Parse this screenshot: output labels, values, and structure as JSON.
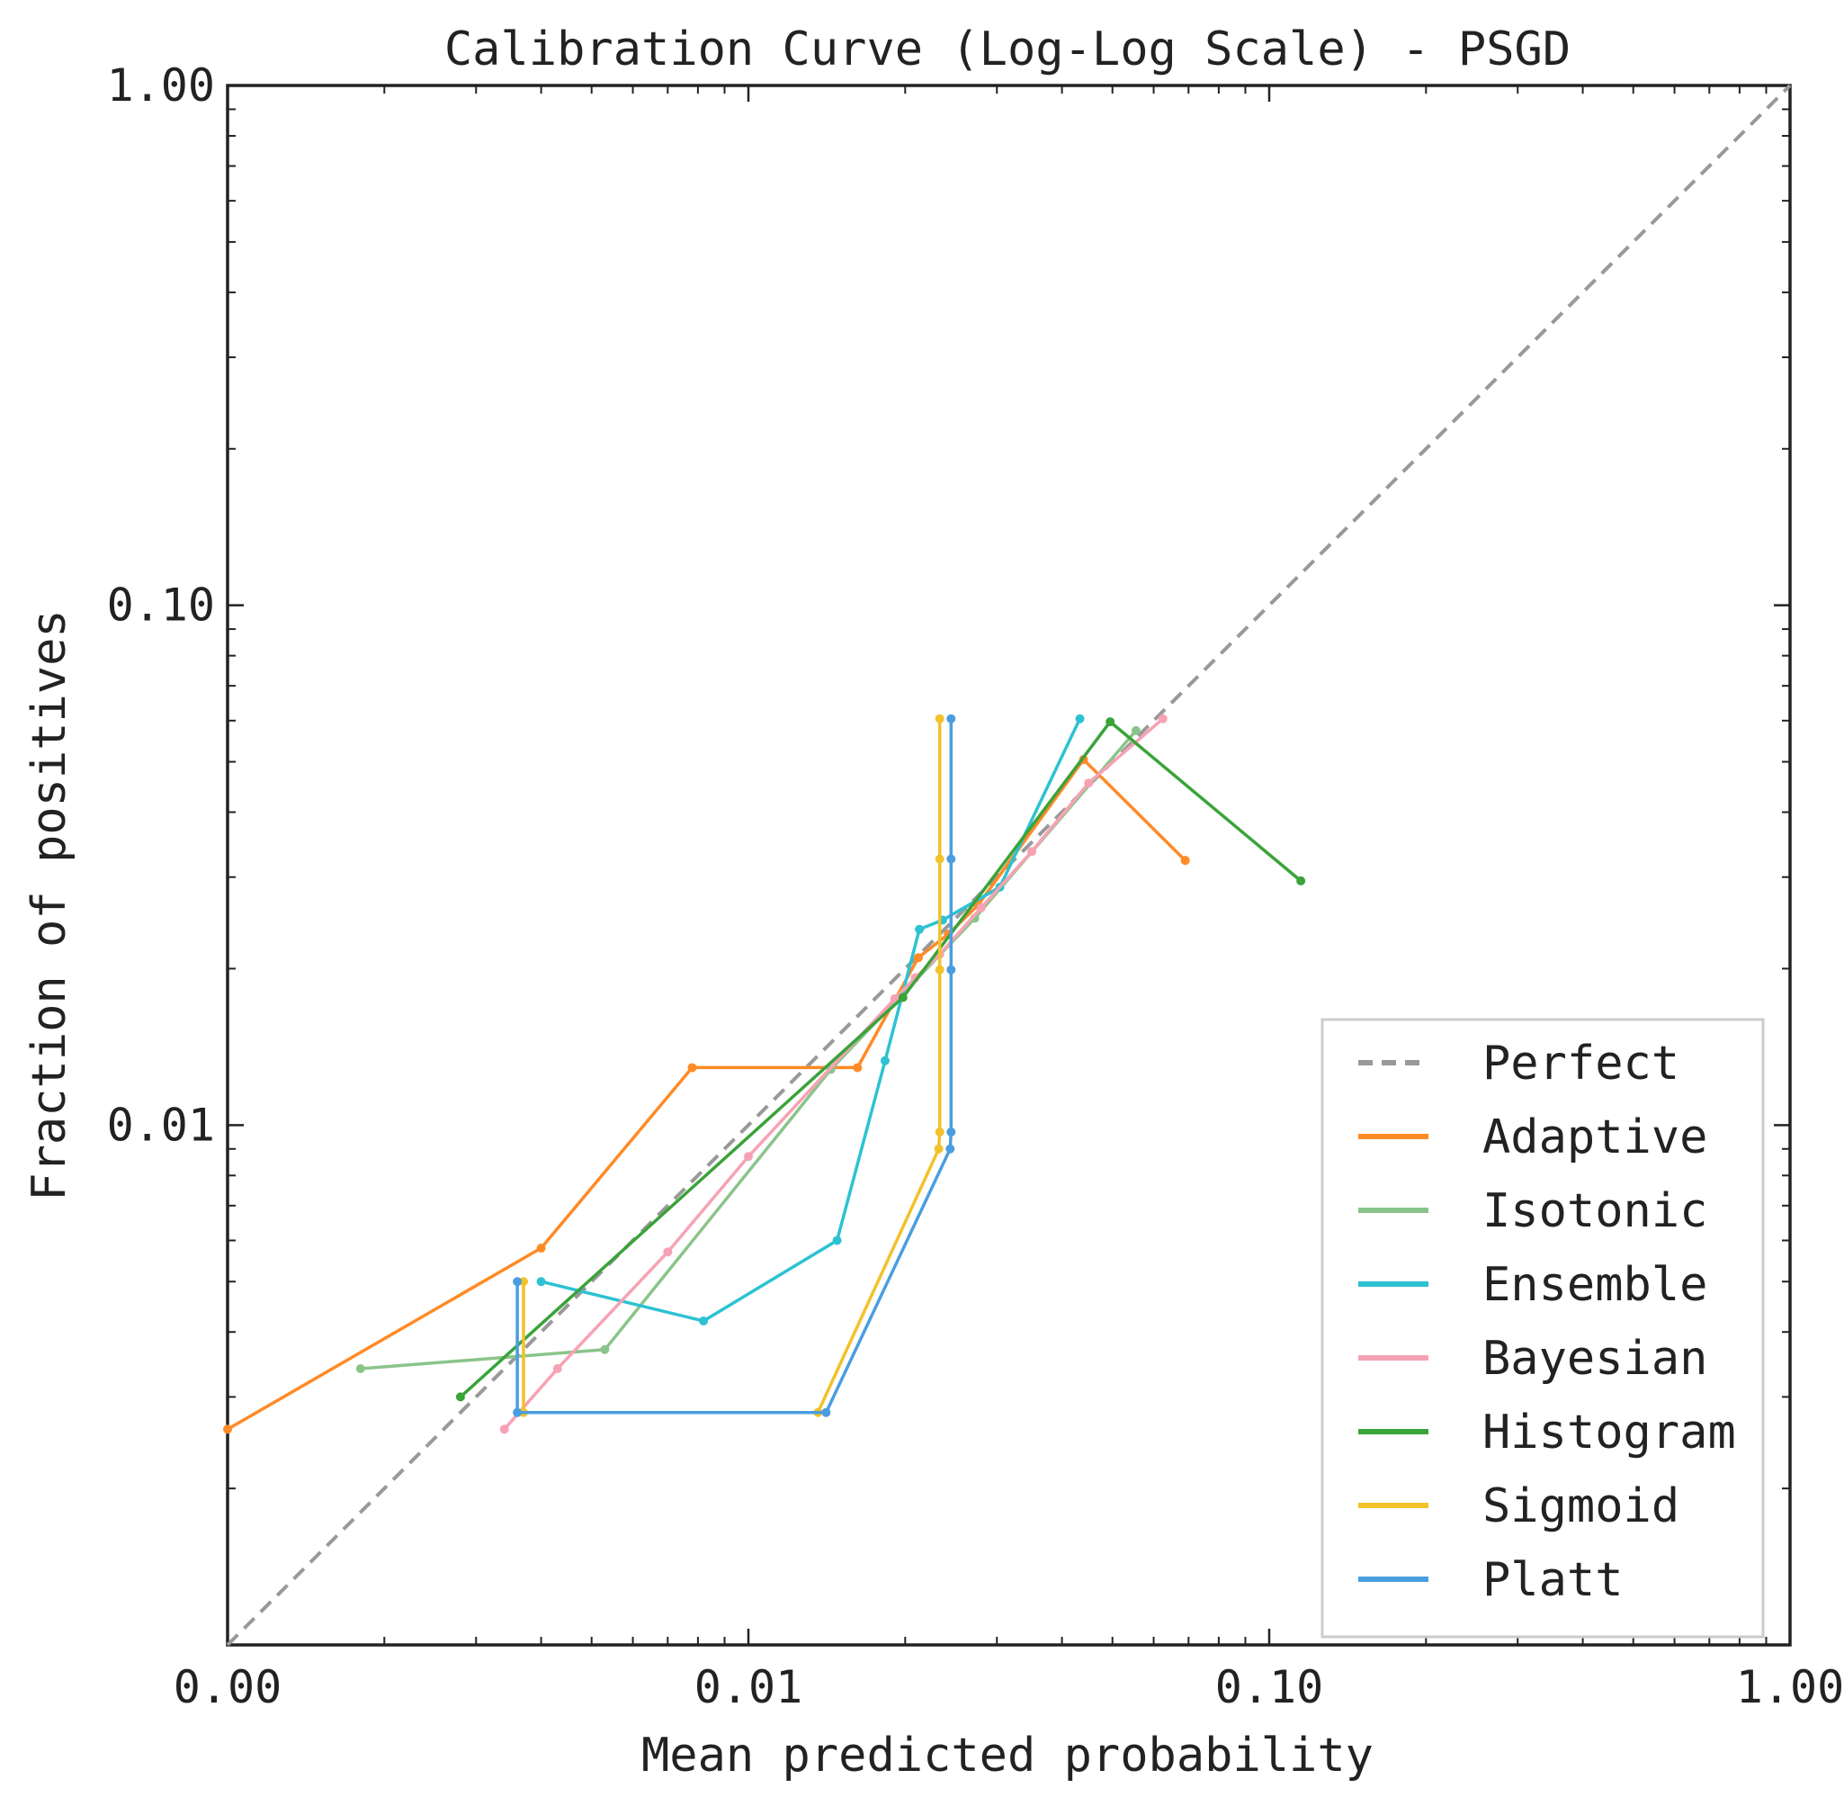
{
  "chart_data": {
    "type": "line",
    "title": "Calibration Curve (Log-Log Scale) - PSGD",
    "xlabel": "Mean predicted probability",
    "ylabel": "Fraction of positives",
    "xscale": "log",
    "yscale": "log",
    "xlim": [
      0.001,
      1.0
    ],
    "ylim": [
      0.001,
      1.0
    ],
    "xticks": [
      0.001,
      0.01,
      0.1,
      1.0
    ],
    "xtick_labels": [
      "0.00",
      "0.01",
      "0.10",
      "1.00"
    ],
    "yticks": [
      0.01,
      0.1,
      1.0
    ],
    "ytick_labels": [
      "0.01",
      "0.10",
      "1.00"
    ],
    "grid": false,
    "legend_position": "lower-right",
    "reference_line": {
      "name": "Perfect",
      "x": [
        0.001,
        1.0
      ],
      "y": [
        0.001,
        1.0
      ],
      "color": "#999999",
      "style": "dashed"
    },
    "series": [
      {
        "name": "Adaptive",
        "color": "#ff8a26",
        "x": [
          0.001,
          0.004,
          0.0078,
          0.0162,
          0.0212,
          0.0242,
          0.0276,
          0.044,
          0.069
        ],
        "y": [
          0.0026,
          0.0058,
          0.0129,
          0.0129,
          0.021,
          0.0233,
          0.0265,
          0.0505,
          0.0323
        ]
      },
      {
        "name": "Isotonic",
        "color": "#8ac48a",
        "x": [
          0.0018,
          0.0053,
          0.0144,
          0.0272,
          0.0555
        ],
        "y": [
          0.0034,
          0.0037,
          0.0128,
          0.025,
          0.0574
        ]
      },
      {
        "name": "Ensemble",
        "color": "#2cc2d2",
        "x": [
          0.004,
          0.0082,
          0.0148,
          0.0183,
          0.0213,
          0.0236,
          0.0304,
          0.0433
        ],
        "y": [
          0.005,
          0.0042,
          0.006,
          0.0133,
          0.0238,
          0.0248,
          0.0287,
          0.0605
        ]
      },
      {
        "name": "Bayesian",
        "color": "#f7a2b4",
        "x": [
          0.0034,
          0.0043,
          0.007,
          0.01,
          0.0191,
          0.0209,
          0.0233,
          0.028,
          0.035,
          0.045,
          0.0625
        ],
        "y": [
          0.0026,
          0.0034,
          0.0057,
          0.0087,
          0.0175,
          0.0192,
          0.0213,
          0.0262,
          0.0336,
          0.0455,
          0.0605
        ]
      },
      {
        "name": "Histogram",
        "color": "#3aa33a",
        "x": [
          0.0028,
          0.0198,
          0.0495,
          0.115
        ],
        "y": [
          0.003,
          0.0176,
          0.0597,
          0.0295
        ]
      },
      {
        "name": "Sigmoid",
        "color": "#f2c22a",
        "x": [
          0.0037,
          0.0037,
          0.0136,
          0.0232,
          0.0233,
          0.0233,
          0.0233,
          0.0233
        ],
        "y": [
          0.005,
          0.0028,
          0.0028,
          0.009,
          0.0097,
          0.0199,
          0.0325,
          0.0605
        ]
      },
      {
        "name": "Platt",
        "color": "#4a9ee0",
        "x": [
          0.0036,
          0.0036,
          0.0141,
          0.0244,
          0.0245,
          0.0245,
          0.0245,
          0.0245
        ],
        "y": [
          0.005,
          0.0028,
          0.0028,
          0.009,
          0.0097,
          0.0199,
          0.0325,
          0.0605
        ]
      }
    ]
  }
}
